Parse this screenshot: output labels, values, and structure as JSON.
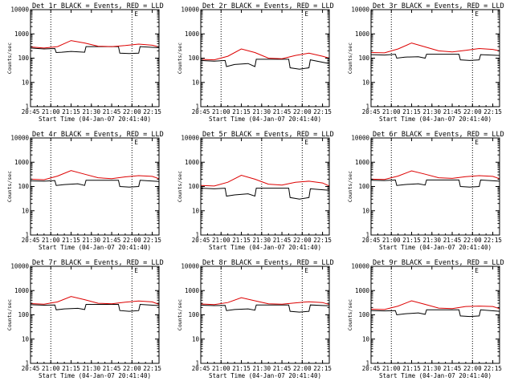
{
  "figure": {
    "colors": {
      "events": "#000000",
      "lld": "#dd0000",
      "axes": "#000000",
      "background": "#ffffff"
    }
  },
  "chart_data": [
    {
      "type": "line",
      "title": "Det 1r BLACK = Events, RED = LLD",
      "xlabel": "Start Time (04-Jan-07 20:41:40)",
      "ylabel": "Counts/sec",
      "x_ticks": [
        "20:45",
        "21:00",
        "21:15",
        "21:30",
        "21:45",
        "22:00",
        "22:15"
      ],
      "y_ticks": [
        "1",
        "10",
        "100",
        "1000",
        "10000"
      ],
      "y_scale": "log",
      "ylim": [
        1,
        10000
      ],
      "xlim": [
        "20:45",
        "22:20"
      ],
      "marker_label": "E",
      "dotted_lines_x": [
        "21:00",
        "22:00"
      ],
      "series": [
        {
          "name": "Events",
          "color": "#000000",
          "x": [
            "20:45",
            "20:55",
            "21:03",
            "21:04",
            "21:08",
            "21:15",
            "21:25",
            "21:26",
            "21:50",
            "21:51",
            "21:58",
            "22:05",
            "22:06",
            "22:20"
          ],
          "values": [
            260,
            240,
            250,
            170,
            175,
            190,
            175,
            300,
            300,
            160,
            155,
            160,
            300,
            270
          ]
        },
        {
          "name": "LLD",
          "color": "#dd0000",
          "x": [
            "20:45",
            "20:55",
            "21:05",
            "21:15",
            "21:25",
            "21:35",
            "21:45",
            "21:55",
            "22:05",
            "22:15",
            "22:20"
          ],
          "values": [
            290,
            260,
            300,
            530,
            420,
            310,
            300,
            330,
            380,
            340,
            290
          ]
        }
      ]
    },
    {
      "type": "line",
      "title": "Det 2r BLACK = Events, RED = LLD",
      "xlabel": "Start Time (04-Jan-07 20:41:40)",
      "ylabel": "Counts/sec",
      "x_ticks": [
        "20:45",
        "21:00",
        "21:15",
        "21:30",
        "21:45",
        "22:00",
        "22:15"
      ],
      "y_ticks": [
        "1",
        "10",
        "100",
        "1000",
        "10000"
      ],
      "y_scale": "log",
      "ylim": [
        1,
        10000
      ],
      "xlim": [
        "20:45",
        "22:20"
      ],
      "marker_label": "E",
      "dotted_lines_x": [
        "21:00",
        "22:00"
      ],
      "series": [
        {
          "name": "Events",
          "color": "#000000",
          "x": [
            "20:45",
            "20:55",
            "21:03",
            "21:04",
            "21:10",
            "21:20",
            "21:25",
            "21:26",
            "21:50",
            "21:51",
            "21:58",
            "22:05",
            "22:06",
            "22:20"
          ],
          "values": [
            80,
            75,
            80,
            45,
            55,
            60,
            45,
            90,
            90,
            40,
            35,
            40,
            85,
            60
          ]
        },
        {
          "name": "LLD",
          "color": "#dd0000",
          "x": [
            "20:45",
            "20:55",
            "21:05",
            "21:15",
            "21:25",
            "21:35",
            "21:45",
            "21:55",
            "22:05",
            "22:15",
            "22:20"
          ],
          "values": [
            90,
            85,
            120,
            240,
            170,
            100,
            95,
            130,
            160,
            120,
            100
          ]
        }
      ]
    },
    {
      "type": "line",
      "title": "Det 3r BLACK = Events, RED = LLD",
      "xlabel": "Start Time (04-Jan-07 20:41:40)",
      "ylabel": "Counts/sec",
      "x_ticks": [
        "20:45",
        "21:00",
        "21:15",
        "21:30",
        "21:45",
        "22:00",
        "22:15"
      ],
      "y_ticks": [
        "1",
        "10",
        "100",
        "1000",
        "10000"
      ],
      "y_scale": "log",
      "ylim": [
        1,
        10000
      ],
      "xlim": [
        "20:45",
        "22:20"
      ],
      "marker_label": "E",
      "dotted_lines_x": [
        "21:00",
        "22:00"
      ],
      "series": [
        {
          "name": "Events",
          "color": "#000000",
          "x": [
            "20:45",
            "20:55",
            "21:03",
            "21:04",
            "21:10",
            "21:20",
            "21:25",
            "21:26",
            "21:50",
            "21:51",
            "21:58",
            "22:05",
            "22:06",
            "22:20"
          ],
          "values": [
            140,
            135,
            145,
            100,
            110,
            115,
            100,
            145,
            145,
            85,
            80,
            85,
            140,
            130
          ]
        },
        {
          "name": "LLD",
          "color": "#dd0000",
          "x": [
            "20:45",
            "20:55",
            "21:05",
            "21:15",
            "21:25",
            "21:35",
            "21:45",
            "21:55",
            "22:05",
            "22:15",
            "22:20"
          ],
          "values": [
            170,
            165,
            240,
            420,
            290,
            200,
            180,
            210,
            250,
            230,
            200
          ]
        }
      ]
    },
    {
      "type": "line",
      "title": "Det 4r BLACK = Events, RED = LLD",
      "xlabel": "Start Time (04-Jan-07 20:41:40)",
      "ylabel": "Counts/sec",
      "x_ticks": [
        "20:45",
        "21:00",
        "21:15",
        "21:30",
        "21:45",
        "22:00",
        "22:15"
      ],
      "y_ticks": [
        "1",
        "10",
        "100",
        "1000",
        "10000"
      ],
      "y_scale": "log",
      "ylim": [
        1,
        10000
      ],
      "xlim": [
        "20:45",
        "22:20"
      ],
      "marker_label": "E",
      "dotted_lines_x": [
        "21:00",
        "22:00"
      ],
      "series": [
        {
          "name": "Events",
          "color": "#000000",
          "x": [
            "20:45",
            "20:55",
            "21:03",
            "21:04",
            "21:10",
            "21:20",
            "21:25",
            "21:26",
            "21:50",
            "21:51",
            "21:58",
            "22:05",
            "22:06",
            "22:20"
          ],
          "values": [
            170,
            165,
            175,
            110,
            120,
            130,
            110,
            180,
            180,
            100,
            95,
            100,
            180,
            160
          ]
        },
        {
          "name": "LLD",
          "color": "#dd0000",
          "x": [
            "20:45",
            "20:55",
            "21:05",
            "21:15",
            "21:25",
            "21:35",
            "21:45",
            "21:55",
            "22:05",
            "22:15",
            "22:20"
          ],
          "values": [
            200,
            190,
            270,
            450,
            320,
            230,
            210,
            250,
            280,
            260,
            210
          ]
        }
      ]
    },
    {
      "type": "line",
      "title": "Det 5r BLACK = Events, RED = LLD",
      "xlabel": "Start Time (04-Jan-07 20:41:40)",
      "ylabel": "Counts/sec",
      "x_ticks": [
        "20:45",
        "21:00",
        "21:15",
        "21:30",
        "21:45",
        "22:00",
        "22:15"
      ],
      "y_ticks": [
        "1",
        "10",
        "100",
        "1000",
        "10000"
      ],
      "y_scale": "log",
      "ylim": [
        1,
        10000
      ],
      "xlim": [
        "20:45",
        "22:20"
      ],
      "marker_label": "E",
      "dotted_lines_x": [
        "21:30",
        "22:00"
      ],
      "series": [
        {
          "name": "Events",
          "color": "#000000",
          "x": [
            "20:45",
            "20:55",
            "21:03",
            "21:04",
            "21:10",
            "21:20",
            "21:25",
            "21:26",
            "21:50",
            "21:51",
            "21:58",
            "22:05",
            "22:06",
            "22:20"
          ],
          "values": [
            85,
            80,
            85,
            40,
            45,
            50,
            40,
            85,
            85,
            35,
            30,
            35,
            80,
            70
          ]
        },
        {
          "name": "LLD",
          "color": "#dd0000",
          "x": [
            "20:45",
            "20:55",
            "21:05",
            "21:15",
            "21:25",
            "21:35",
            "21:45",
            "21:55",
            "22:05",
            "22:15",
            "22:20"
          ],
          "values": [
            110,
            105,
            150,
            290,
            200,
            125,
            115,
            150,
            165,
            140,
            105
          ]
        }
      ]
    },
    {
      "type": "line",
      "title": "Det 6r BLACK = Events, RED = LLD",
      "xlabel": "Start Time (04-Jan-07 20:41:40)",
      "ylabel": "Counts/sec",
      "x_ticks": [
        "20:45",
        "21:00",
        "21:15",
        "21:30",
        "21:45",
        "22:00",
        "22:15"
      ],
      "y_ticks": [
        "1",
        "10",
        "100",
        "1000",
        "10000"
      ],
      "y_scale": "log",
      "ylim": [
        1,
        10000
      ],
      "xlim": [
        "20:45",
        "22:20"
      ],
      "marker_label": "E",
      "dotted_lines_x": [
        "21:00",
        "22:00"
      ],
      "series": [
        {
          "name": "Events",
          "color": "#000000",
          "x": [
            "20:45",
            "20:55",
            "21:03",
            "21:04",
            "21:10",
            "21:20",
            "21:25",
            "21:26",
            "21:50",
            "21:51",
            "21:58",
            "22:05",
            "22:06",
            "22:20"
          ],
          "values": [
            180,
            175,
            185,
            110,
            120,
            130,
            115,
            185,
            185,
            100,
            95,
            100,
            185,
            165
          ]
        },
        {
          "name": "LLD",
          "color": "#dd0000",
          "x": [
            "20:45",
            "20:55",
            "21:05",
            "21:15",
            "21:25",
            "21:35",
            "21:45",
            "21:55",
            "22:05",
            "22:15",
            "22:20"
          ],
          "values": [
            200,
            195,
            270,
            440,
            320,
            230,
            215,
            255,
            280,
            260,
            210
          ]
        }
      ]
    },
    {
      "type": "line",
      "title": "Det 7r BLACK = Events, RED = LLD",
      "xlabel": "Start Time (04-Jan-07 20:41:40)",
      "ylabel": "Counts/sec",
      "x_ticks": [
        "20:45",
        "21:00",
        "21:15",
        "21:30",
        "21:45",
        "22:00",
        "22:15"
      ],
      "y_ticks": [
        "1",
        "10",
        "100",
        "1000",
        "10000"
      ],
      "y_scale": "log",
      "ylim": [
        1,
        10000
      ],
      "xlim": [
        "20:45",
        "22:20"
      ],
      "marker_label": "E",
      "dotted_lines_x": [
        "21:00",
        "22:00"
      ],
      "series": [
        {
          "name": "Events",
          "color": "#000000",
          "x": [
            "20:45",
            "20:55",
            "21:03",
            "21:04",
            "21:10",
            "21:20",
            "21:25",
            "21:26",
            "21:50",
            "21:51",
            "21:58",
            "22:05",
            "22:06",
            "22:20"
          ],
          "values": [
            260,
            250,
            255,
            160,
            175,
            185,
            165,
            270,
            270,
            150,
            140,
            150,
            270,
            240
          ]
        },
        {
          "name": "LLD",
          "color": "#dd0000",
          "x": [
            "20:45",
            "20:55",
            "21:05",
            "21:15",
            "21:25",
            "21:35",
            "21:45",
            "21:55",
            "22:05",
            "22:15",
            "22:20"
          ],
          "values": [
            290,
            275,
            340,
            570,
            420,
            300,
            285,
            330,
            370,
            340,
            270
          ]
        }
      ]
    },
    {
      "type": "line",
      "title": "Det 8r BLACK = Events, RED = LLD",
      "xlabel": "Start Time (04-Jan-07 20:41:40)",
      "ylabel": "Counts/sec",
      "x_ticks": [
        "20:45",
        "21:00",
        "21:15",
        "21:30",
        "21:45",
        "22:00",
        "22:15"
      ],
      "y_ticks": [
        "1",
        "10",
        "100",
        "1000",
        "10000"
      ],
      "y_scale": "log",
      "ylim": [
        1,
        10000
      ],
      "xlim": [
        "20:45",
        "22:20"
      ],
      "marker_label": "E",
      "dotted_lines_x": [
        "21:00",
        "22:00"
      ],
      "series": [
        {
          "name": "Events",
          "color": "#000000",
          "x": [
            "20:45",
            "20:55",
            "21:03",
            "21:04",
            "21:10",
            "21:20",
            "21:25",
            "21:26",
            "21:50",
            "21:51",
            "21:58",
            "22:05",
            "22:06",
            "22:20"
          ],
          "values": [
            250,
            240,
            245,
            150,
            165,
            175,
            155,
            255,
            255,
            140,
            130,
            140,
            255,
            235
          ]
        },
        {
          "name": "LLD",
          "color": "#dd0000",
          "x": [
            "20:45",
            "20:55",
            "21:05",
            "21:15",
            "21:25",
            "21:35",
            "21:45",
            "21:55",
            "22:05",
            "22:15",
            "22:20"
          ],
          "values": [
            280,
            265,
            320,
            510,
            380,
            285,
            275,
            310,
            345,
            320,
            265
          ]
        }
      ]
    },
    {
      "type": "line",
      "title": "Det 9r BLACK = Events, RED = LLD",
      "xlabel": "Start Time (04-Jan-07 20:41:40)",
      "ylabel": "Counts/sec",
      "x_ticks": [
        "20:45",
        "21:00",
        "21:15",
        "21:30",
        "21:45",
        "22:00",
        "22:15"
      ],
      "y_ticks": [
        "1",
        "10",
        "100",
        "1000",
        "10000"
      ],
      "y_scale": "log",
      "ylim": [
        1,
        10000
      ],
      "xlim": [
        "20:45",
        "22:20"
      ],
      "marker_label": "E",
      "dotted_lines_x": [
        "21:00",
        "22:00"
      ],
      "series": [
        {
          "name": "Events",
          "color": "#000000",
          "x": [
            "20:45",
            "20:55",
            "21:03",
            "21:04",
            "21:10",
            "21:20",
            "21:25",
            "21:26",
            "21:50",
            "21:51",
            "21:58",
            "22:05",
            "22:06",
            "22:20"
          ],
          "values": [
            150,
            145,
            150,
            100,
            110,
            120,
            105,
            160,
            160,
            90,
            85,
            90,
            160,
            140
          ]
        },
        {
          "name": "LLD",
          "color": "#dd0000",
          "x": [
            "20:45",
            "20:55",
            "21:05",
            "21:15",
            "21:25",
            "21:35",
            "21:45",
            "21:55",
            "22:05",
            "22:15",
            "22:20"
          ],
          "values": [
            170,
            165,
            230,
            380,
            270,
            190,
            180,
            220,
            230,
            220,
            180
          ]
        }
      ]
    }
  ]
}
